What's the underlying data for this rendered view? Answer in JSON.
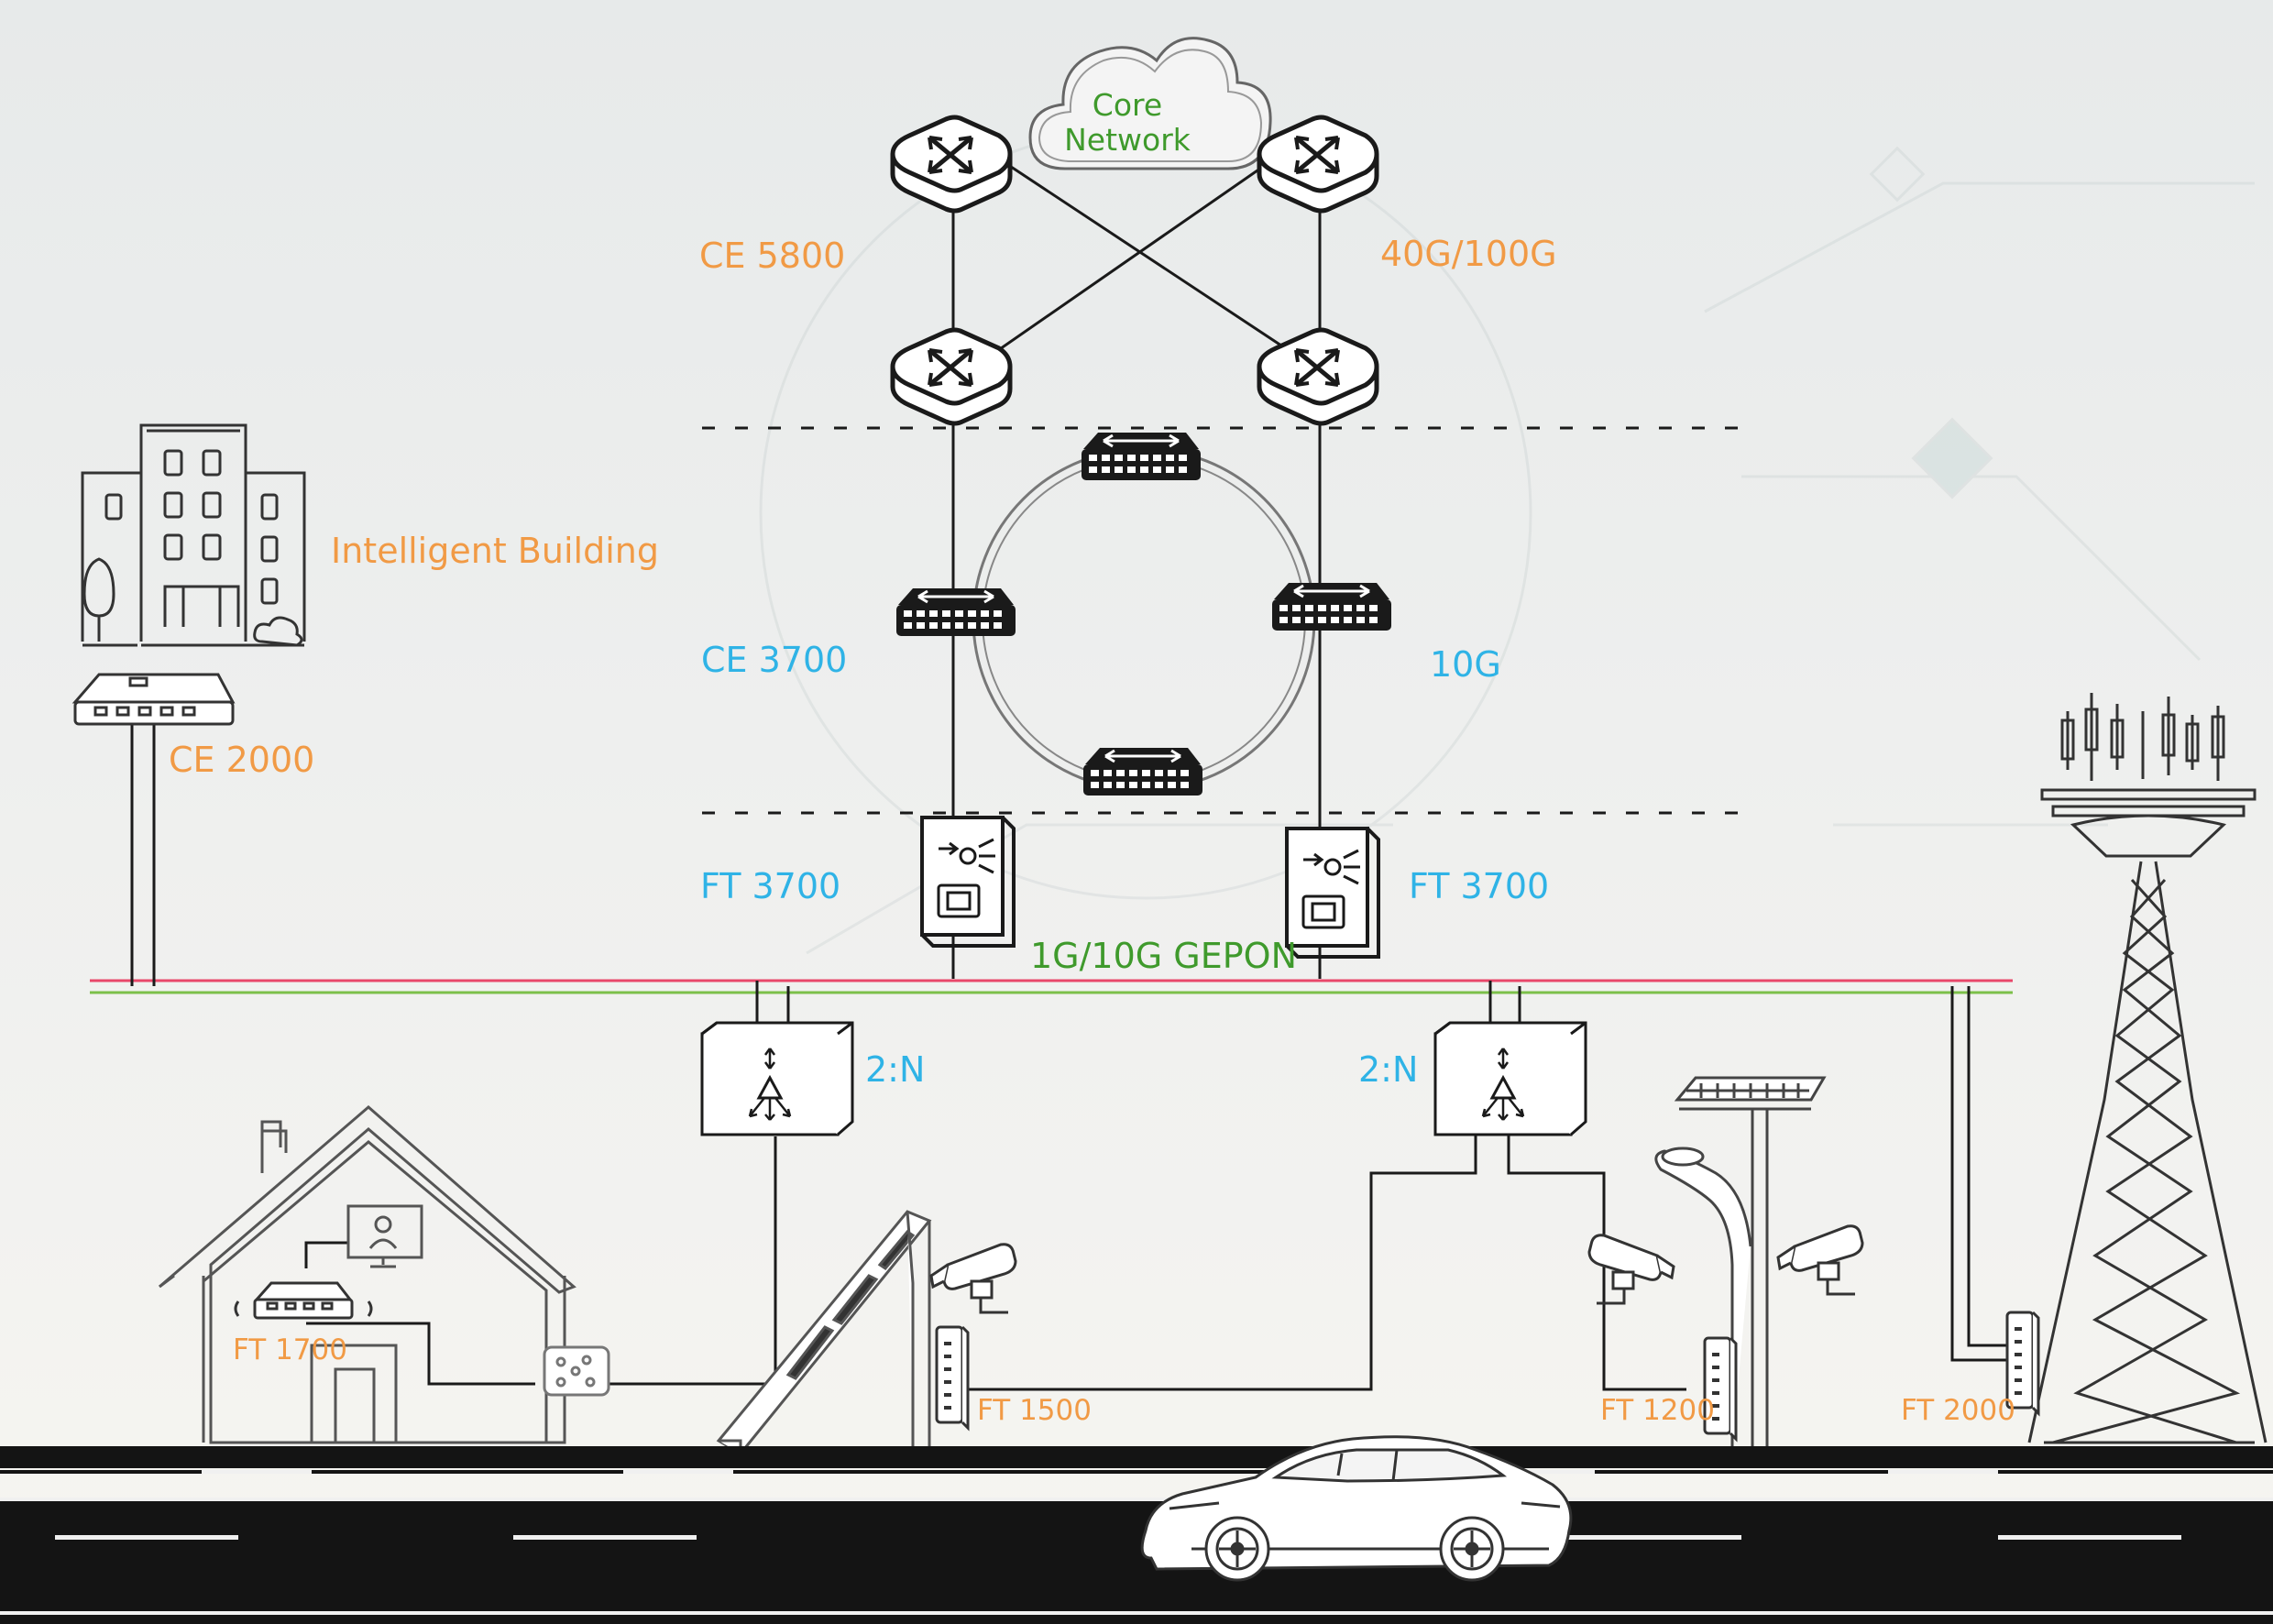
{
  "core_network": {
    "line1": "Core",
    "line2": "Network"
  },
  "labels": {
    "ce5800": "CE 5800",
    "core_speed": "40G/100G",
    "intelligent_building": "Intelligent Building",
    "ce2000": "CE 2000",
    "ce3700": "CE 3700",
    "ring_speed": "10G",
    "ft3700_left": "FT 3700",
    "ft3700_right": "FT 3700",
    "gepon": "1G/10G GEPON",
    "splitter_left": "2:N",
    "splitter_right": "2:N",
    "ft1700": "FT 1700",
    "ft1500": "FT 1500",
    "ft1200": "FT 1200",
    "ft2000": "FT 2000"
  },
  "colors": {
    "orange": "#f19a45",
    "blue": "#2fb3e6",
    "green": "#3f9a2c",
    "bus_red": "#e8476a",
    "bus_green": "#7cc04a",
    "road": "#141414"
  },
  "icons": [
    "cloud-icon",
    "core-switch-icon",
    "ring-switch-icon",
    "olt-icon",
    "splitter-icon",
    "building-icon",
    "house-icon",
    "camera-icon",
    "solar-panel-icon",
    "streetlight-icon",
    "tower-icon",
    "car-icon"
  ]
}
